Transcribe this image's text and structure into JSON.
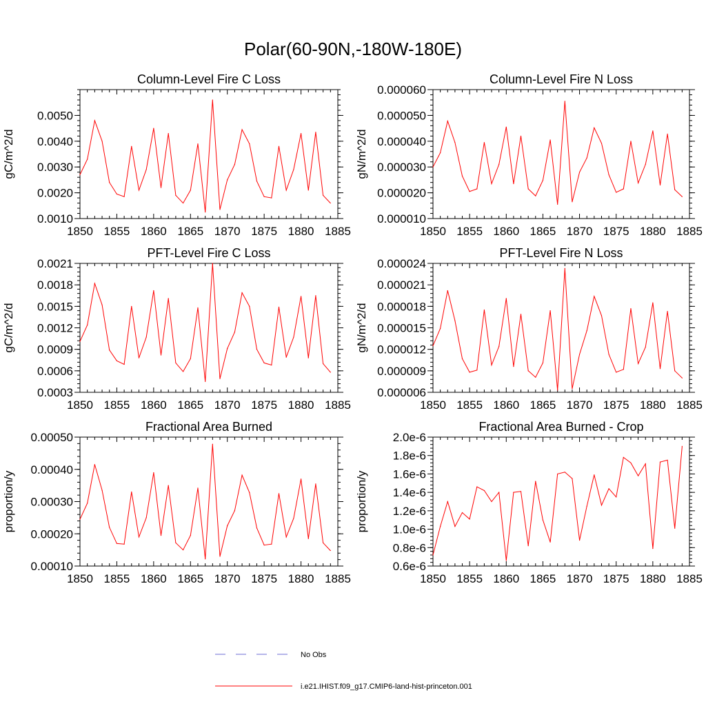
{
  "title": "Polar(60-90N,-180W-180E)",
  "legend": [
    {
      "label": "No Obs",
      "color": "#6b6bd6",
      "style": "dashed"
    },
    {
      "label": "i.e21.IHIST.f09_g17.CMIP6-land-hist-princeton.001",
      "color": "#ff0000",
      "style": "solid"
    }
  ],
  "chart_data": [
    {
      "type": "line",
      "title": "Column-Level Fire C Loss",
      "ylabel": "gC/m^2/d",
      "xlim": [
        1850,
        1885
      ],
      "ylim": [
        0.001,
        0.006
      ],
      "xticks": [
        "1850",
        "1855",
        "1860",
        "1865",
        "1870",
        "1875",
        "1880",
        "1885"
      ],
      "yticks": [
        0.001,
        0.002,
        0.003,
        0.004,
        0.005
      ],
      "yticklabels": [
        "0.0010",
        "0.0020",
        "0.0030",
        "0.0040",
        "0.0050"
      ],
      "x": [
        1850,
        1851,
        1852,
        1853,
        1854,
        1855,
        1856,
        1857,
        1858,
        1859,
        1860,
        1861,
        1862,
        1863,
        1864,
        1865,
        1866,
        1867,
        1868,
        1869,
        1870,
        1871,
        1872,
        1873,
        1874,
        1875,
        1876,
        1877,
        1878,
        1879,
        1880,
        1881,
        1882,
        1883,
        1884
      ],
      "values": [
        0.0027,
        0.0033,
        0.0048,
        0.004,
        0.0024,
        0.00195,
        0.00185,
        0.0038,
        0.0021,
        0.0029,
        0.0045,
        0.0022,
        0.0043,
        0.0019,
        0.0016,
        0.0021,
        0.0039,
        0.00125,
        0.0056,
        0.00135,
        0.0025,
        0.0031,
        0.00445,
        0.0039,
        0.00245,
        0.00185,
        0.0018,
        0.0038,
        0.0021,
        0.0029,
        0.0043,
        0.0021,
        0.00435,
        0.0019,
        0.0016
      ]
    },
    {
      "type": "line",
      "title": "Column-Level Fire N Loss",
      "ylabel": "gN/m^2/d",
      "xlim": [
        1850,
        1885
      ],
      "ylim": [
        1e-05,
        6e-05
      ],
      "xticks": [
        "1850",
        "1855",
        "1860",
        "1865",
        "1870",
        "1875",
        "1880",
        "1885"
      ],
      "yticks": [
        1e-05,
        2e-05,
        3e-05,
        4e-05,
        5e-05,
        6e-05
      ],
      "yticklabels": [
        "0.000010",
        "0.000020",
        "0.000030",
        "0.000040",
        "0.000050",
        "0.000060"
      ],
      "x": [
        1850,
        1851,
        1852,
        1853,
        1854,
        1855,
        1856,
        1857,
        1858,
        1859,
        1860,
        1861,
        1862,
        1863,
        1864,
        1865,
        1866,
        1867,
        1868,
        1869,
        1870,
        1871,
        1872,
        1873,
        1874,
        1875,
        1876,
        1877,
        1878,
        1879,
        1880,
        1881,
        1882,
        1883,
        1884
      ],
      "values": [
        3e-05,
        3.55e-05,
        4.78e-05,
        3.95e-05,
        2.65e-05,
        2.05e-05,
        2.15e-05,
        3.95e-05,
        2.35e-05,
        3.1e-05,
        4.55e-05,
        2.35e-05,
        4.2e-05,
        2.15e-05,
        1.88e-05,
        2.48e-05,
        4.05e-05,
        1.55e-05,
        5.55e-05,
        1.65e-05,
        2.8e-05,
        3.35e-05,
        4.52e-05,
        3.92e-05,
        2.7e-05,
        2.02e-05,
        2.15e-05,
        4e-05,
        2.38e-05,
        3.1e-05,
        4.4e-05,
        2.3e-05,
        4.28e-05,
        2.12e-05,
        1.85e-05
      ]
    },
    {
      "type": "line",
      "title": "PFT-Level Fire C Loss",
      "ylabel": "gC/m^2/d",
      "xlim": [
        1850,
        1885
      ],
      "ylim": [
        0.0003,
        0.0021
      ],
      "xticks": [
        "1850",
        "1855",
        "1860",
        "1865",
        "1870",
        "1875",
        "1880",
        "1885"
      ],
      "yticks": [
        0.0003,
        0.0006,
        0.0009,
        0.0012,
        0.0015,
        0.0018,
        0.0021
      ],
      "yticklabels": [
        "0.0003",
        "0.0006",
        "0.0009",
        "0.0012",
        "0.0015",
        "0.0018",
        "0.0021"
      ],
      "x": [
        1850,
        1851,
        1852,
        1853,
        1854,
        1855,
        1856,
        1857,
        1858,
        1859,
        1860,
        1861,
        1862,
        1863,
        1864,
        1865,
        1866,
        1867,
        1868,
        1869,
        1870,
        1871,
        1872,
        1873,
        1874,
        1875,
        1876,
        1877,
        1878,
        1879,
        1880,
        1881,
        1882,
        1883,
        1884
      ],
      "values": [
        0.00101,
        0.00124,
        0.00182,
        0.00152,
        0.00089,
        0.00074,
        0.00069,
        0.0015,
        0.00078,
        0.00107,
        0.00172,
        0.00082,
        0.00161,
        0.00071,
        0.00059,
        0.00077,
        0.00148,
        0.00045,
        0.0021,
        0.00049,
        0.00091,
        0.00114,
        0.00169,
        0.0015,
        0.0009,
        0.00071,
        0.00068,
        0.00149,
        0.00079,
        0.00107,
        0.00164,
        0.00078,
        0.00165,
        0.0007,
        0.00058
      ]
    },
    {
      "type": "line",
      "title": "PFT-Level Fire N Loss",
      "ylabel": "gN/m^2/d",
      "xlim": [
        1850,
        1885
      ],
      "ylim": [
        6e-06,
        2.4e-05
      ],
      "xticks": [
        "1850",
        "1855",
        "1860",
        "1865",
        "1870",
        "1875",
        "1880",
        "1885"
      ],
      "yticks": [
        6e-06,
        9e-06,
        1.2e-05,
        1.5e-05,
        1.8e-05,
        2.1e-05,
        2.4e-05
      ],
      "yticklabels": [
        "0.000006",
        "0.000009",
        "0.000012",
        "0.000015",
        "0.000018",
        "0.000021",
        "0.000024"
      ],
      "x": [
        1850,
        1851,
        1852,
        1853,
        1854,
        1855,
        1856,
        1857,
        1858,
        1859,
        1860,
        1861,
        1862,
        1863,
        1864,
        1865,
        1866,
        1867,
        1868,
        1869,
        1870,
        1871,
        1872,
        1873,
        1874,
        1875,
        1876,
        1877,
        1878,
        1879,
        1880,
        1881,
        1882,
        1883,
        1884
      ],
      "values": [
        1.25e-05,
        1.49e-05,
        2.02e-05,
        1.6e-05,
        1.07e-05,
        8.8e-06,
        9.1e-06,
        1.75e-05,
        9.8e-06,
        1.24e-05,
        1.91e-05,
        9.6e-06,
        1.69e-05,
        9e-06,
        8.1e-06,
        1.01e-05,
        1.74e-05,
        6.3e-06,
        2.33e-05,
        6.5e-06,
        1.13e-05,
        1.46e-05,
        1.94e-05,
        1.67e-05,
        1.13e-05,
        8.8e-06,
        9.2e-06,
        1.77e-05,
        1e-05,
        1.23e-05,
        1.85e-05,
        9.3e-06,
        1.73e-05,
        9e-06,
        8e-06
      ]
    },
    {
      "type": "line",
      "title": "Fractional Area Burned",
      "ylabel": "proportion/y",
      "xlim": [
        1850,
        1885
      ],
      "ylim": [
        0.0001,
        0.0005
      ],
      "xticks": [
        "1850",
        "1855",
        "1860",
        "1865",
        "1870",
        "1875",
        "1880",
        "1885"
      ],
      "yticks": [
        0.0001,
        0.0002,
        0.0003,
        0.0004,
        0.0005
      ],
      "yticklabels": [
        "0.00010",
        "0.00020",
        "0.00030",
        "0.00040",
        "0.00050"
      ],
      "x": [
        1850,
        1851,
        1852,
        1853,
        1854,
        1855,
        1856,
        1857,
        1858,
        1859,
        1860,
        1861,
        1862,
        1863,
        1864,
        1865,
        1866,
        1867,
        1868,
        1869,
        1870,
        1871,
        1872,
        1873,
        1874,
        1875,
        1876,
        1877,
        1878,
        1879,
        1880,
        1881,
        1882,
        1883,
        1884
      ],
      "values": [
        0.000245,
        0.000295,
        0.000415,
        0.000335,
        0.00022,
        0.00017,
        0.000168,
        0.00033,
        0.00019,
        0.00025,
        0.00039,
        0.000195,
        0.00035,
        0.000172,
        0.00015,
        0.000195,
        0.000342,
        0.000122,
        0.000478,
        0.00013,
        0.000225,
        0.000272,
        0.000382,
        0.000328,
        0.000218,
        0.000165,
        0.000168,
        0.000325,
        0.00019,
        0.000248,
        0.00037,
        0.000185,
        0.000355,
        0.000172,
        0.000148
      ]
    },
    {
      "type": "line",
      "title": "Fractional Area Burned - Crop",
      "ylabel": "proportion/y",
      "xlim": [
        1850,
        1885
      ],
      "ylim": [
        6e-07,
        2e-06
      ],
      "xticks": [
        "1850",
        "1855",
        "1860",
        "1865",
        "1870",
        "1875",
        "1880",
        "1885"
      ],
      "yticks": [
        6e-07,
        8e-07,
        1e-06,
        1.2e-06,
        1.4e-06,
        1.6e-06,
        1.8e-06,
        2e-06
      ],
      "yticklabels": [
        "0.6e-6",
        "0.8e-6",
        "1.0e-6",
        "1.2e-6",
        "1.4e-6",
        "1.6e-6",
        "1.8e-6",
        "2.0e-6"
      ],
      "x": [
        1850,
        1851,
        1852,
        1853,
        1854,
        1855,
        1856,
        1857,
        1858,
        1859,
        1860,
        1861,
        1862,
        1863,
        1864,
        1865,
        1866,
        1867,
        1868,
        1869,
        1870,
        1871,
        1872,
        1873,
        1874,
        1875,
        1876,
        1877,
        1878,
        1879,
        1880,
        1881,
        1882,
        1883,
        1884
      ],
      "values": [
        7.2e-07,
        1.03e-06,
        1.3e-06,
        1.03e-06,
        1.18e-06,
        1.11e-06,
        1.46e-06,
        1.42e-06,
        1.3e-06,
        1.4e-06,
        6.6e-07,
        1.4e-06,
        1.41e-06,
        8.2e-07,
        1.52e-06,
        1.1e-06,
        8.6e-07,
        1.6e-06,
        1.62e-06,
        1.55e-06,
        8.8e-07,
        1.25e-06,
        1.59e-06,
        1.26e-06,
        1.44e-06,
        1.35e-06,
        1.78e-06,
        1.72e-06,
        1.58e-06,
        1.71e-06,
        7.9e-07,
        1.73e-06,
        1.75e-06,
        1.01e-06,
        1.9e-06
      ]
    }
  ]
}
